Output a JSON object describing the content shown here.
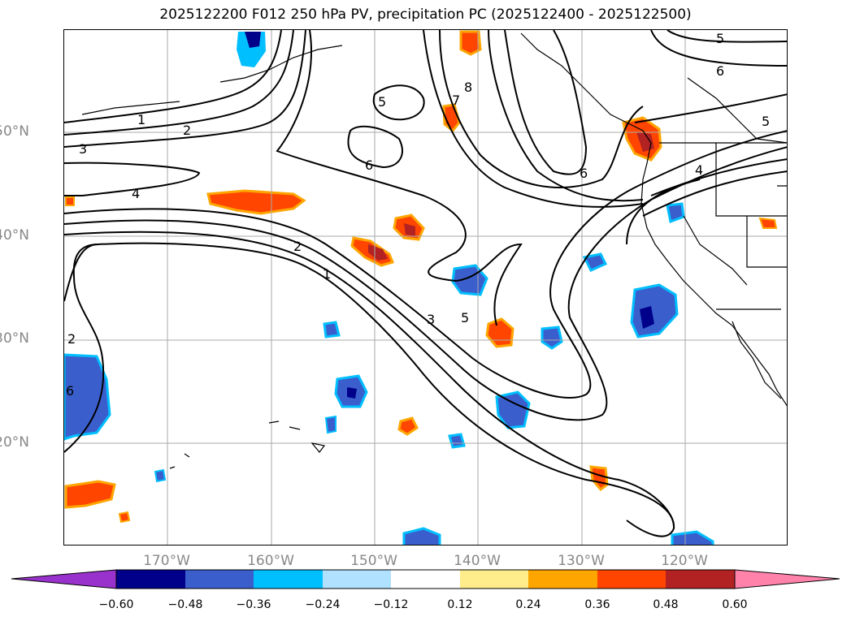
{
  "title": "2025122200 F012 250 hPa PV, precipitation PC (2025122400 - 2025122500)",
  "lat_labels": [
    "50°N",
    "40°N",
    "30°N",
    "20°N"
  ],
  "lon_labels": [
    "170°W",
    "160°W",
    "150°W",
    "140°W",
    "130°W",
    "120°W"
  ],
  "colorbar": {
    "colors": [
      "#9932cc",
      "#00008b",
      "#3a5fcd",
      "#00bfff",
      "#b0e2ff",
      "#ffffff",
      "#ffec8b",
      "#ffa500",
      "#ff4500",
      "#b22222",
      "#ff82ab"
    ],
    "labels": [
      "−0.60",
      "−0.48",
      "−0.36",
      "−0.24",
      "−0.12",
      "0.12",
      "0.24",
      "0.36",
      "0.48",
      "0.60"
    ]
  },
  "contour_labels": [
    "1",
    "2",
    "3",
    "4",
    "2",
    "1",
    "3",
    "5",
    "5",
    "6",
    "7",
    "8",
    "6",
    "5",
    "6",
    "5",
    "4",
    "2",
    "6"
  ]
}
